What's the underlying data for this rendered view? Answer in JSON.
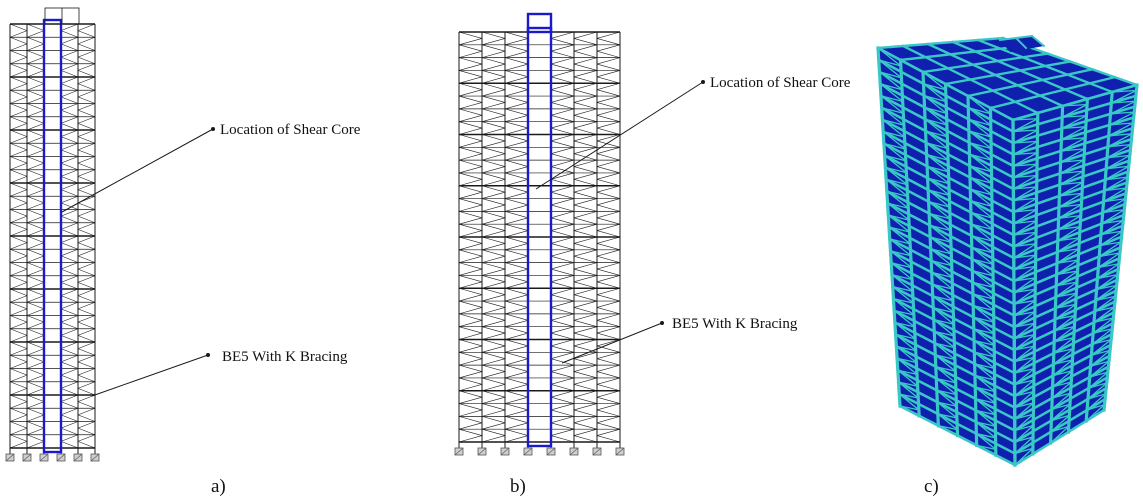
{
  "panels": [
    {
      "caption": "a)",
      "annotations": [
        "Location of Shear Core",
        "BE5 With K Bracing"
      ],
      "bays": 5,
      "stories": 32,
      "core_bay": 2
    },
    {
      "caption": "b)",
      "annotations": [
        "Location of Shear Core",
        "BE5 With K Bracing"
      ],
      "bays": 7,
      "stories": 32,
      "core_bay": 3
    },
    {
      "caption": "c)"
    }
  ],
  "colors": {
    "frame_line": "#1a1a1a",
    "shear_core": "#1a1acc",
    "model_frame": "#3ac7c7",
    "model_slab": "#0f1fae",
    "base_support": "#555555"
  }
}
